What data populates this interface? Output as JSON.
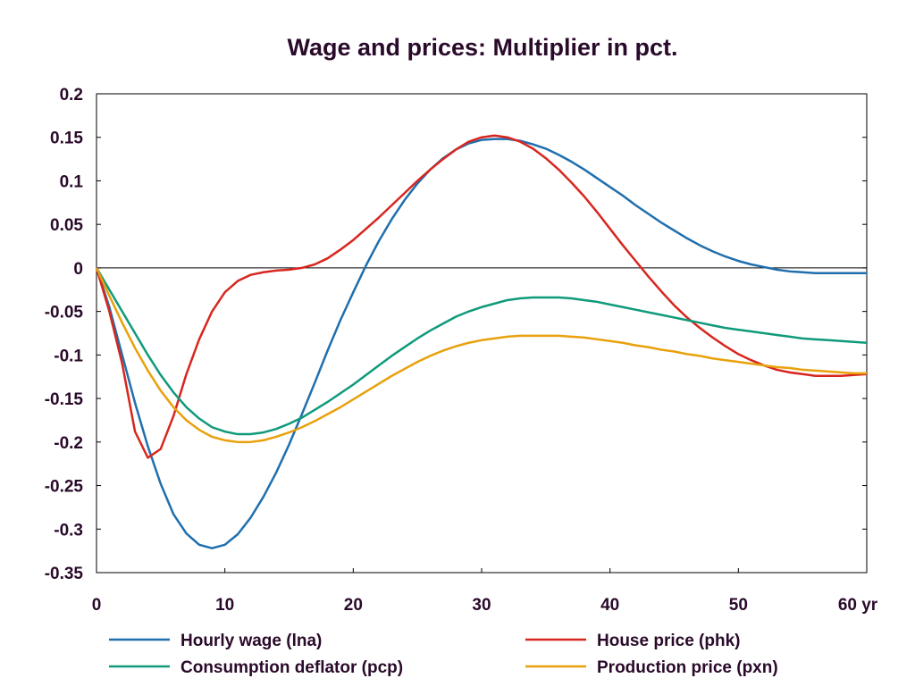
{
  "chart_data": {
    "type": "line",
    "title": "Wage and prices: Multiplier in pct.",
    "x_unit": "yr",
    "xlim": [
      0,
      60
    ],
    "ylim": [
      -0.35,
      0.2
    ],
    "x_ticks": [
      0,
      10,
      20,
      30,
      40,
      50,
      60
    ],
    "x_tick_labels": [
      "0",
      "10",
      "20",
      "30",
      "40",
      "50",
      "60 yr"
    ],
    "y_ticks": [
      0.2,
      0.15,
      0.1,
      0.05,
      0,
      -0.05,
      -0.1,
      -0.15,
      -0.2,
      -0.25,
      -0.3,
      -0.35
    ],
    "y_tick_labels": [
      "0.2",
      "0.15",
      "0.1",
      "0.05",
      "0",
      "-0.05",
      "-0.1",
      "-0.15",
      "-0.2",
      "-0.25",
      "-0.3",
      "-0.35"
    ],
    "zero_line": true,
    "grid": false,
    "legend_position": "bottom",
    "series": [
      {
        "name": "Hourly wage (lna)",
        "color": "#1f6fae",
        "x": [
          0,
          1,
          2,
          3,
          4,
          5,
          6,
          7,
          8,
          9,
          10,
          11,
          12,
          13,
          14,
          15,
          16,
          17,
          18,
          19,
          20,
          21,
          22,
          23,
          24,
          25,
          26,
          27,
          28,
          29,
          30,
          31,
          32,
          33,
          34,
          35,
          36,
          37,
          38,
          39,
          40,
          41,
          42,
          43,
          44,
          45,
          46,
          47,
          48,
          49,
          50,
          51,
          52,
          53,
          54,
          55,
          56,
          57,
          58,
          59,
          60
        ],
        "y": [
          0,
          -0.045,
          -0.1,
          -0.155,
          -0.205,
          -0.248,
          -0.283,
          -0.305,
          -0.318,
          -0.322,
          -0.318,
          -0.306,
          -0.287,
          -0.263,
          -0.235,
          -0.203,
          -0.168,
          -0.132,
          -0.095,
          -0.06,
          -0.028,
          0.003,
          0.031,
          0.056,
          0.078,
          0.097,
          0.113,
          0.126,
          0.136,
          0.143,
          0.147,
          0.148,
          0.148,
          0.146,
          0.142,
          0.137,
          0.13,
          0.122,
          0.113,
          0.103,
          0.093,
          0.083,
          0.072,
          0.062,
          0.052,
          0.043,
          0.034,
          0.026,
          0.019,
          0.013,
          0.008,
          0.004,
          0.001,
          -0.002,
          -0.004,
          -0.005,
          -0.006,
          -0.006,
          -0.006,
          -0.006,
          -0.006
        ]
      },
      {
        "name": "House price (phk)",
        "color": "#d8261e",
        "x": [
          0,
          1,
          2,
          3,
          4,
          5,
          6,
          7,
          8,
          9,
          10,
          11,
          12,
          13,
          14,
          15,
          16,
          17,
          18,
          19,
          20,
          21,
          22,
          23,
          24,
          25,
          26,
          27,
          28,
          29,
          30,
          31,
          32,
          33,
          34,
          35,
          36,
          37,
          38,
          39,
          40,
          41,
          42,
          43,
          44,
          45,
          46,
          47,
          48,
          49,
          50,
          51,
          52,
          53,
          54,
          55,
          56,
          57,
          58,
          59,
          60
        ],
        "y": [
          0,
          -0.05,
          -0.11,
          -0.188,
          -0.218,
          -0.208,
          -0.17,
          -0.122,
          -0.082,
          -0.05,
          -0.028,
          -0.015,
          -0.008,
          -0.005,
          -0.003,
          -0.002,
          0,
          0.004,
          0.011,
          0.021,
          0.032,
          0.045,
          0.058,
          0.072,
          0.086,
          0.1,
          0.113,
          0.125,
          0.136,
          0.145,
          0.15,
          0.152,
          0.15,
          0.145,
          0.137,
          0.126,
          0.113,
          0.098,
          0.082,
          0.064,
          0.045,
          0.026,
          0.008,
          -0.01,
          -0.027,
          -0.043,
          -0.057,
          -0.069,
          -0.08,
          -0.09,
          -0.099,
          -0.106,
          -0.112,
          -0.117,
          -0.12,
          -0.122,
          -0.124,
          -0.124,
          -0.124,
          -0.123,
          -0.122
        ]
      },
      {
        "name": "Consumption deflator (pcp)",
        "color": "#0f9a7a",
        "x": [
          0,
          1,
          2,
          3,
          4,
          5,
          6,
          7,
          8,
          9,
          10,
          11,
          12,
          13,
          14,
          15,
          16,
          17,
          18,
          19,
          20,
          21,
          22,
          23,
          24,
          25,
          26,
          27,
          28,
          29,
          30,
          31,
          32,
          33,
          34,
          35,
          36,
          37,
          38,
          39,
          40,
          41,
          42,
          43,
          44,
          45,
          46,
          47,
          48,
          49,
          50,
          51,
          52,
          53,
          54,
          55,
          56,
          57,
          58,
          59,
          60
        ],
        "y": [
          0,
          -0.025,
          -0.05,
          -0.075,
          -0.1,
          -0.123,
          -0.143,
          -0.16,
          -0.173,
          -0.183,
          -0.188,
          -0.191,
          -0.191,
          -0.189,
          -0.185,
          -0.179,
          -0.172,
          -0.163,
          -0.154,
          -0.144,
          -0.134,
          -0.123,
          -0.112,
          -0.101,
          -0.091,
          -0.081,
          -0.072,
          -0.064,
          -0.056,
          -0.05,
          -0.045,
          -0.041,
          -0.037,
          -0.035,
          -0.034,
          -0.034,
          -0.034,
          -0.035,
          -0.037,
          -0.039,
          -0.042,
          -0.045,
          -0.048,
          -0.051,
          -0.054,
          -0.057,
          -0.06,
          -0.063,
          -0.066,
          -0.069,
          -0.071,
          -0.073,
          -0.075,
          -0.077,
          -0.079,
          -0.081,
          -0.082,
          -0.083,
          -0.084,
          -0.085,
          -0.086
        ]
      },
      {
        "name": "Production price (pxn)",
        "color": "#e8a10c",
        "x": [
          0,
          1,
          2,
          3,
          4,
          5,
          6,
          7,
          8,
          9,
          10,
          11,
          12,
          13,
          14,
          15,
          16,
          17,
          18,
          19,
          20,
          21,
          22,
          23,
          24,
          25,
          26,
          27,
          28,
          29,
          30,
          31,
          32,
          33,
          34,
          35,
          36,
          37,
          38,
          39,
          40,
          41,
          42,
          43,
          44,
          45,
          46,
          47,
          48,
          49,
          50,
          51,
          52,
          53,
          54,
          55,
          56,
          57,
          58,
          59,
          60
        ],
        "y": [
          0,
          -0.032,
          -0.063,
          -0.092,
          -0.118,
          -0.141,
          -0.16,
          -0.175,
          -0.186,
          -0.194,
          -0.198,
          -0.2,
          -0.2,
          -0.198,
          -0.194,
          -0.189,
          -0.183,
          -0.176,
          -0.168,
          -0.16,
          -0.151,
          -0.142,
          -0.133,
          -0.124,
          -0.116,
          -0.108,
          -0.101,
          -0.095,
          -0.09,
          -0.086,
          -0.083,
          -0.081,
          -0.079,
          -0.078,
          -0.078,
          -0.078,
          -0.078,
          -0.079,
          -0.08,
          -0.082,
          -0.084,
          -0.086,
          -0.089,
          -0.091,
          -0.094,
          -0.096,
          -0.099,
          -0.101,
          -0.104,
          -0.106,
          -0.108,
          -0.11,
          -0.112,
          -0.114,
          -0.115,
          -0.117,
          -0.118,
          -0.119,
          -0.12,
          -0.121,
          -0.121
        ]
      }
    ]
  }
}
